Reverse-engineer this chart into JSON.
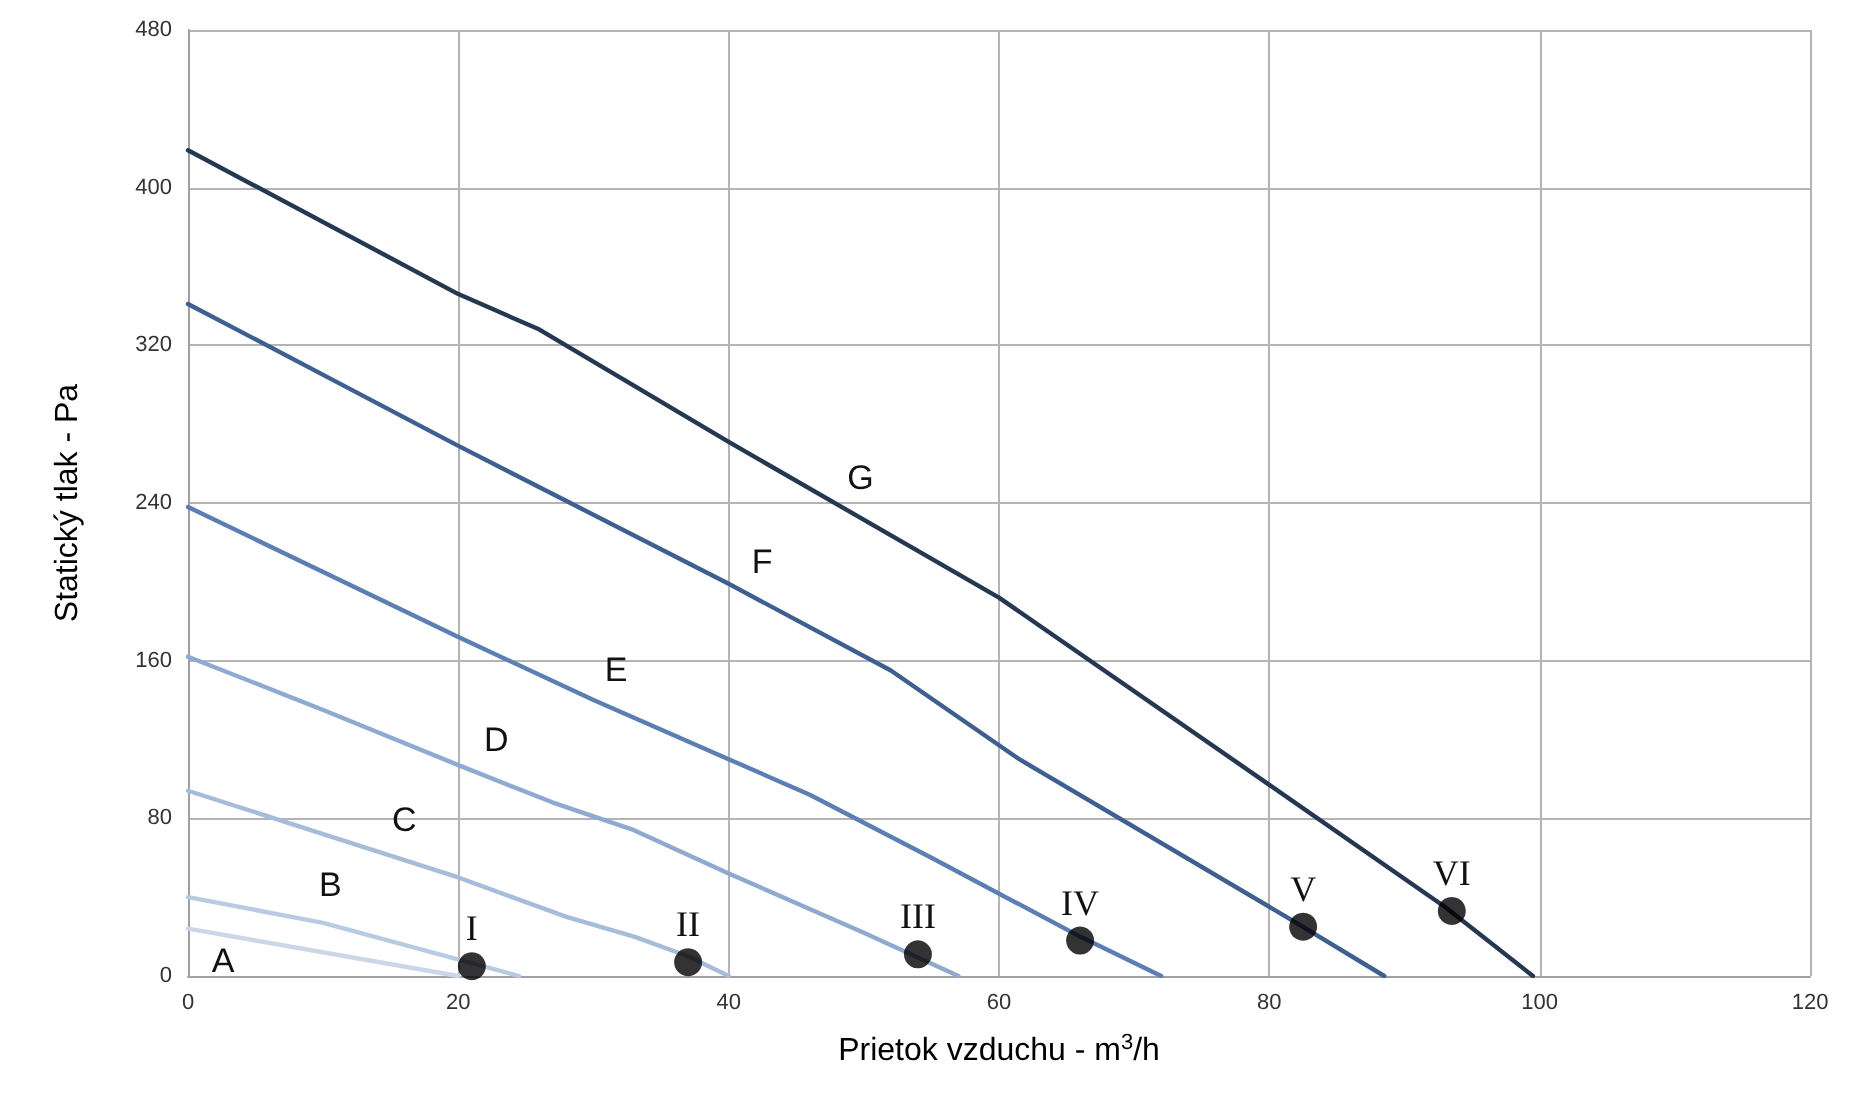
{
  "chart_data": {
    "type": "line",
    "xlabel": "Prietok vzduchu - m$^{3}$/h",
    "ylabel": "Statický tlak - Pa",
    "xlim": [
      0,
      120
    ],
    "xticks": [
      0,
      20,
      40,
      60,
      80,
      100,
      120
    ],
    "ylim": [
      0,
      480
    ],
    "yticks": [
      0,
      80,
      160,
      240,
      320,
      400,
      480
    ],
    "grid": true,
    "marker": "none",
    "line_style": "solid",
    "series": [
      {
        "name": "A",
        "color": "#c9d7e8",
        "x": [
          0,
          20
        ],
        "values": [
          24,
          0
        ]
      },
      {
        "name": "B",
        "color": "#b8cbe2",
        "x": [
          0,
          10,
          24.5
        ],
        "values": [
          40,
          27,
          0
        ]
      },
      {
        "name": "C",
        "color": "#a6bdd9",
        "x": [
          0,
          10,
          20,
          28,
          33,
          37,
          40
        ],
        "values": [
          94,
          72,
          50,
          30,
          20,
          10,
          0
        ]
      },
      {
        "name": "D",
        "color": "#8eaad1",
        "x": [
          0,
          10,
          20,
          27,
          33,
          40,
          50,
          57
        ],
        "values": [
          162,
          135,
          107,
          88,
          74,
          52,
          22,
          0
        ]
      },
      {
        "name": "E",
        "color": "#5b7fb5",
        "x": [
          0,
          10,
          20,
          30,
          40,
          46,
          55,
          66,
          72
        ],
        "values": [
          238,
          205,
          172,
          140,
          110,
          92,
          60,
          20,
          0
        ]
      },
      {
        "name": "F",
        "color": "#3e5f92",
        "x": [
          0,
          10,
          20,
          28,
          40,
          52,
          61.5,
          82,
          88.5
        ],
        "values": [
          341,
          305,
          269,
          241,
          199,
          155,
          110,
          27,
          0
        ]
      },
      {
        "name": "G",
        "color": "#243852",
        "x": [
          0,
          20,
          26,
          40,
          60,
          80,
          93,
          99.5
        ],
        "values": [
          419,
          346,
          328,
          271,
          192,
          97,
          35,
          0
        ]
      },
      {
        "type": "scatter",
        "marker": "circle",
        "color": "#000000",
        "x": [
          21,
          37,
          54,
          66,
          82.5,
          93.5
        ],
        "values": [
          5,
          7,
          11,
          18,
          25,
          33
        ]
      }
    ],
    "annotations": [
      {
        "text": "I",
        "x": 21,
        "y": 5
      },
      {
        "text": "II",
        "x": 37,
        "y": 7
      },
      {
        "text": "III",
        "x": 54,
        "y": 11
      },
      {
        "text": "IV",
        "x": 66,
        "y": 18
      },
      {
        "text": "V",
        "x": 82.5,
        "y": 25
      },
      {
        "text": "VI",
        "x": 93.5,
        "y": 33
      }
    ]
  }
}
